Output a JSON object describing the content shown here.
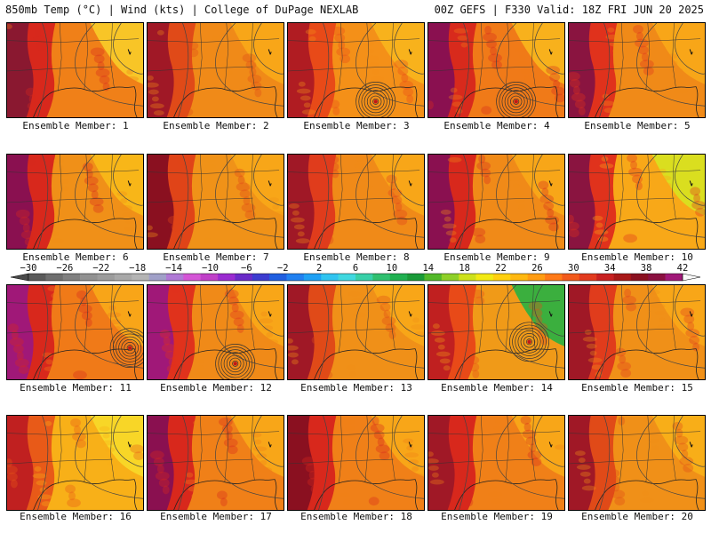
{
  "header": {
    "left": "850mb Temp (°C) | Wind (kts) | College of DuPage NEXLAB",
    "right": "00Z GEFS | F330 Valid: 18Z FRI JUN 20 2025"
  },
  "colorbar": {
    "tick_labels": [
      "-30",
      "-26",
      "-22",
      "-18",
      "-14",
      "-10",
      "-6",
      "-2",
      "2",
      "6",
      "10",
      "14",
      "18",
      "22",
      "26",
      "30",
      "34",
      "38",
      "42"
    ],
    "range": [
      -30,
      42
    ],
    "bin_width": 2,
    "bin_colors": [
      "#5a5a5a",
      "#6e6e6e",
      "#808080",
      "#919191",
      "#9c9c9c",
      "#a8a8a8",
      "#b4b4b4",
      "#a0a0c8",
      "#b07ad6",
      "#d455d6",
      "#c040c8",
      "#9a2bd0",
      "#6a2bc8",
      "#3c3cd0",
      "#1f5ee0",
      "#2080f0",
      "#1ea0f4",
      "#30c4f0",
      "#40d8e0",
      "#38d0a8",
      "#30c070",
      "#20b050",
      "#1a9a38",
      "#52b82a",
      "#8ed028",
      "#cde11c",
      "#f2ea14",
      "#ffd010",
      "#ffb810",
      "#ff9c12",
      "#ff7a18",
      "#f25a1c",
      "#e23a1e",
      "#c82020",
      "#a81818",
      "#8a1020",
      "#8a1040",
      "#a01878"
    ]
  },
  "panels": [
    {
      "label": "Ensemble Member: 1",
      "hot": "#8a1830",
      "warm": "#d8281c",
      "mid": "#f08018",
      "cool": "#f8c828",
      "low": false
    },
    {
      "label": "Ensemble Member: 2",
      "hot": "#a01826",
      "warm": "#e04a18",
      "mid": "#f08a18",
      "cool": "#f8a818",
      "low": false
    },
    {
      "label": "Ensemble Member: 3",
      "hot": "#b01c22",
      "warm": "#e84a18",
      "mid": "#f49018",
      "cool": "#f8b41c",
      "low": true
    },
    {
      "label": "Ensemble Member: 4",
      "hot": "#8a1050",
      "warm": "#d82a1c",
      "mid": "#f07a18",
      "cool": "#f8b41c",
      "low": true
    },
    {
      "label": "Ensemble Member: 5",
      "hot": "#8a1440",
      "warm": "#e0321c",
      "mid": "#f08a18",
      "cool": "#f8a818",
      "low": false
    },
    {
      "label": "Ensemble Member: 6",
      "hot": "#8a1050",
      "warm": "#d8281c",
      "mid": "#f09018",
      "cool": "#f8b818",
      "low": false
    },
    {
      "label": "Ensemble Member: 7",
      "hot": "#8a1020",
      "warm": "#e04418",
      "mid": "#f09218",
      "cool": "#f8a818",
      "low": false
    },
    {
      "label": "Ensemble Member: 8",
      "hot": "#a01826",
      "warm": "#e03c1c",
      "mid": "#f08a18",
      "cool": "#f8a818",
      "low": false
    },
    {
      "label": "Ensemble Member: 9",
      "hot": "#8a1050",
      "warm": "#d8281c",
      "mid": "#f08a18",
      "cool": "#f8a818",
      "low": false
    },
    {
      "label": "Ensemble Member: 10",
      "hot": "#8a1440",
      "warm": "#e0321c",
      "mid": "#f8a818",
      "cool": "#d8e020",
      "low": false
    },
    {
      "label": "Ensemble Member: 11",
      "hot": "#a01878",
      "warm": "#d8281c",
      "mid": "#f07a18",
      "cool": "#f8a818",
      "low": true
    },
    {
      "label": "Ensemble Member: 12",
      "hot": "#a01878",
      "warm": "#e0321c",
      "mid": "#f08a18",
      "cool": "#f8a818",
      "low": true
    },
    {
      "label": "Ensemble Member: 13",
      "hot": "#a01826",
      "warm": "#e04a18",
      "mid": "#f09018",
      "cool": "#f8a818",
      "low": false
    },
    {
      "label": "Ensemble Member: 14",
      "hot": "#c02020",
      "warm": "#e84a18",
      "mid": "#f09a18",
      "cool": "#30b040",
      "low": true
    },
    {
      "label": "Ensemble Member: 15",
      "hot": "#a01826",
      "warm": "#e03c1c",
      "mid": "#f09018",
      "cool": "#f8a818",
      "low": false
    },
    {
      "label": "Ensemble Member: 16",
      "hot": "#c02020",
      "warm": "#e85a18",
      "mid": "#f8b018",
      "cool": "#f8d828",
      "low": false
    },
    {
      "label": "Ensemble Member: 17",
      "hot": "#8a1050",
      "warm": "#d8281c",
      "mid": "#f08018",
      "cool": "#f8a818",
      "low": false
    },
    {
      "label": "Ensemble Member: 18",
      "hot": "#8a1020",
      "warm": "#d8281c",
      "mid": "#f08018",
      "cool": "#f8a818",
      "low": false
    },
    {
      "label": "Ensemble Member: 19",
      "hot": "#a01826",
      "warm": "#d8281c",
      "mid": "#f08018",
      "cool": "#f8a818",
      "low": false
    },
    {
      "label": "Ensemble Member: 20",
      "hot": "#a01826",
      "warm": "#e04a18",
      "mid": "#f09018",
      "cool": "#f8b018",
      "low": false
    }
  ]
}
